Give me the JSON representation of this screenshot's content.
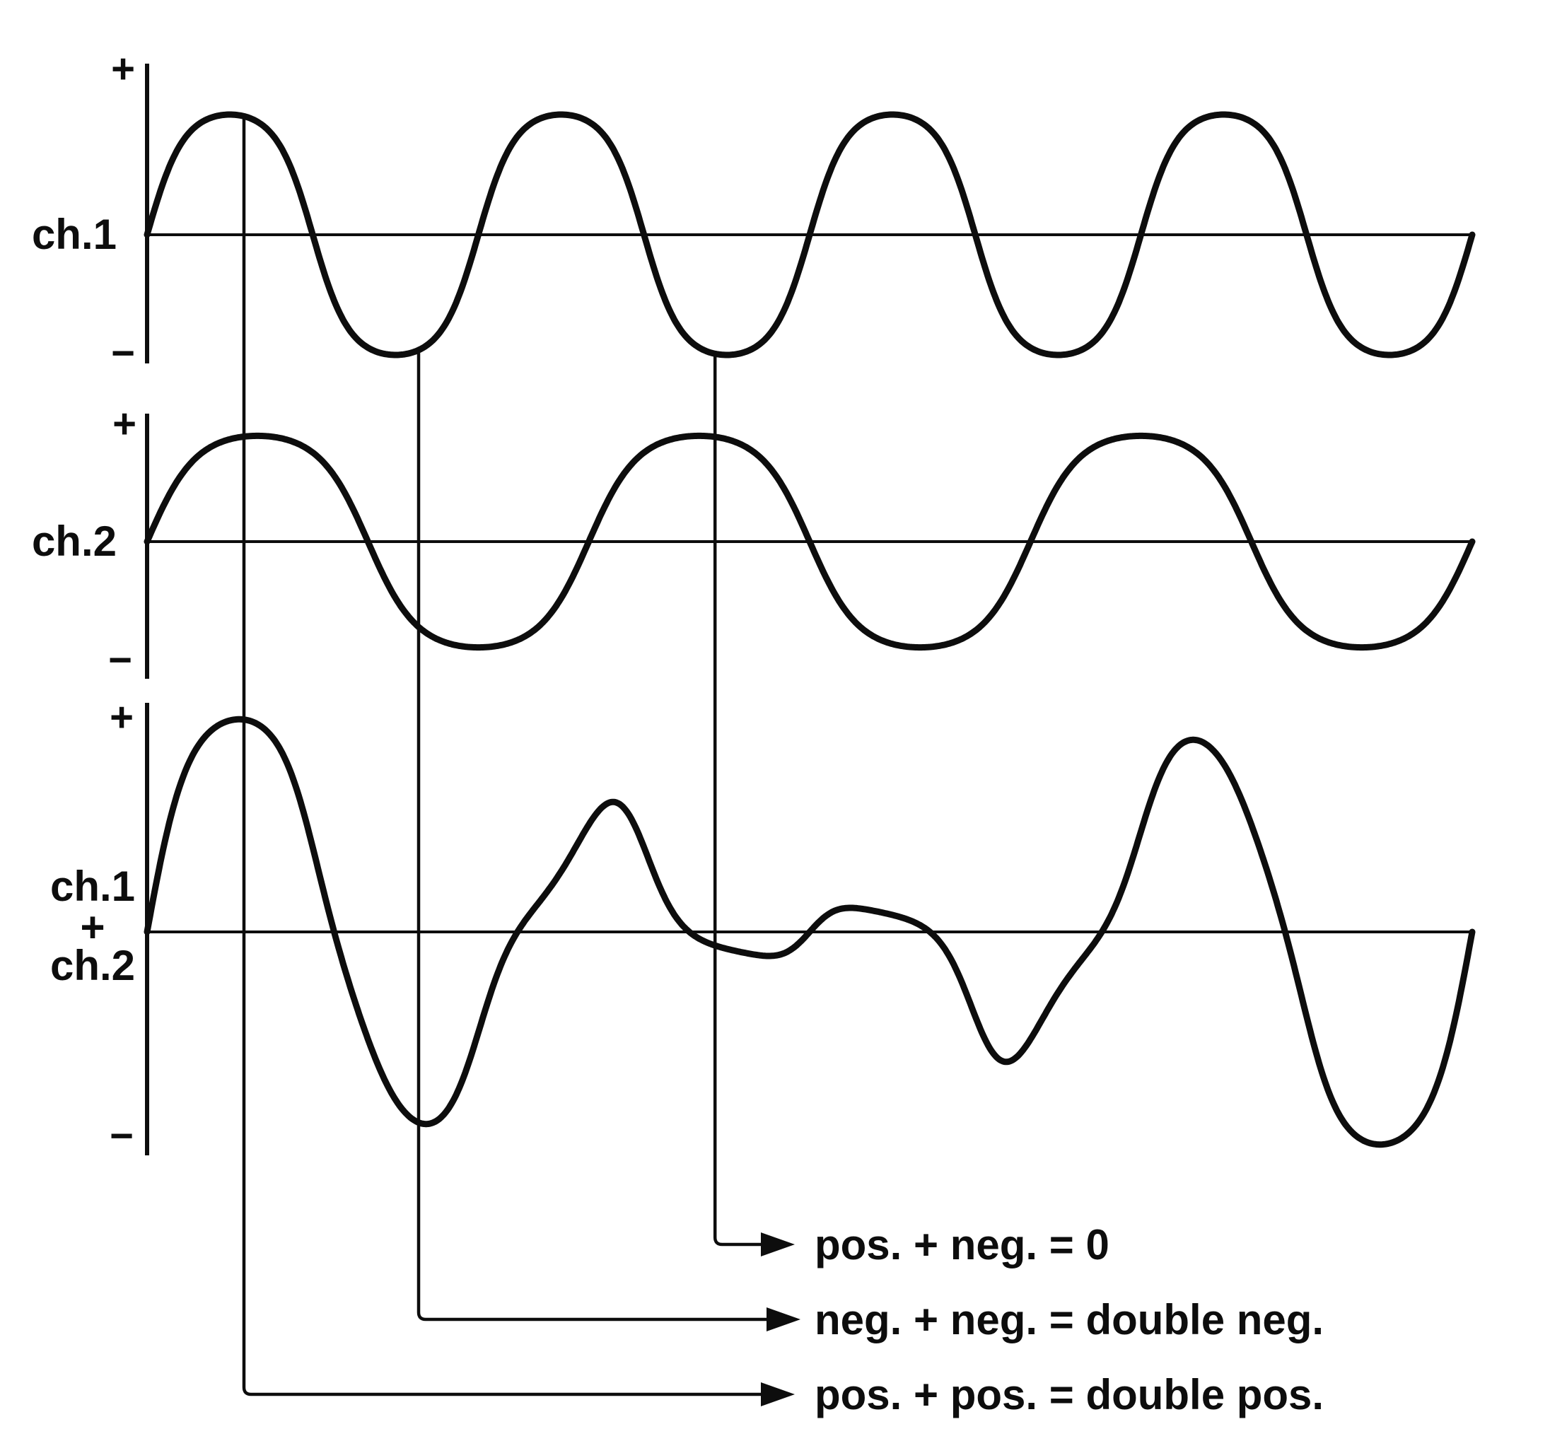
{
  "figure_labels": {
    "row1": {
      "label": "ch.1",
      "plus": "+",
      "minus": "−"
    },
    "row2": {
      "label": "ch.2",
      "plus": "+",
      "minus": "−"
    },
    "row3": {
      "label_line1": "ch.1",
      "label_line2": "+",
      "label_line3": "ch.2",
      "plus": "+",
      "minus": "−"
    }
  },
  "annotations": [
    {
      "text": "pos. + neg. = 0",
      "u": 0.4286
    },
    {
      "text": "neg. + neg. = double neg.",
      "u": 0.2049
    },
    {
      "text": "pos. + pos. = double pos.",
      "u": 0.0731
    }
  ],
  "chart_data": {
    "type": "line",
    "title": "",
    "panels": [
      {
        "id": "ch1",
        "label": "ch.1",
        "waveform": "sine",
        "cycles": 4,
        "relative_amplitude": 1.0,
        "phase_deg": 0,
        "y_axis_tick_labels": [
          "+",
          "−"
        ]
      },
      {
        "id": "ch2",
        "label": "ch.2",
        "waveform": "sine",
        "cycles": 3,
        "relative_amplitude": 0.88,
        "phase_deg": 0,
        "y_axis_tick_labels": [
          "+",
          "−"
        ]
      },
      {
        "id": "sum",
        "label": "ch.1 + ch.2",
        "waveform": "sum",
        "combines": [
          "ch1",
          "ch2"
        ],
        "relative_scale": 0.95,
        "y_axis_tick_labels": [
          "+",
          "−"
        ]
      }
    ],
    "x_axis": {
      "label": "",
      "range_cycles_fraction": [
        0,
        1
      ],
      "grid": false
    },
    "alignment_markers_u": [
      0.4286,
      0.2049,
      0.0731
    ],
    "annotation_texts": [
      "pos. + neg. = 0",
      "neg. + neg. = double neg.",
      "pos. + pos. = double pos."
    ]
  },
  "colors": {
    "ink": "#0d0d0d",
    "background": "#ffffff"
  }
}
